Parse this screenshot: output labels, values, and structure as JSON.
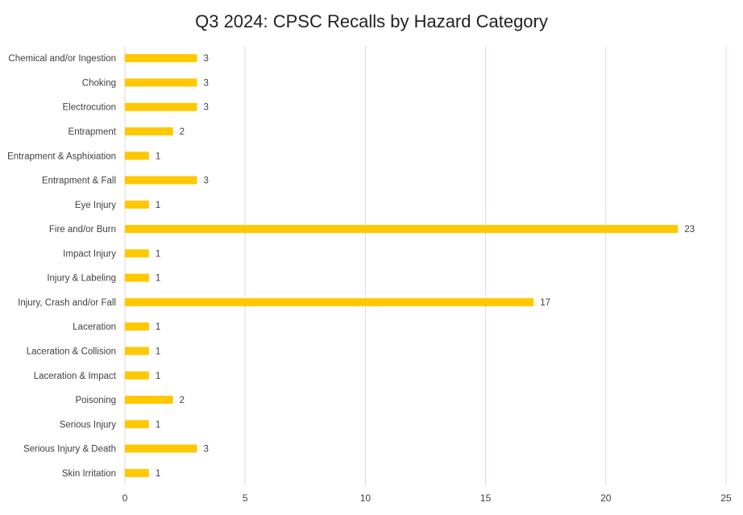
{
  "chart_data": {
    "type": "bar",
    "orientation": "horizontal",
    "title": "Q3 2024: CPSC Recalls by Hazard Category",
    "xlabel": "",
    "ylabel": "",
    "categories": [
      "Chemical and/or Ingestion",
      "Choking",
      "Electrocution",
      "Entrapment",
      "Entrapment & Asphixiation",
      "Entrapment & Fall",
      "Eye Injury",
      "Fire and/or Burn",
      "Impact Injury",
      "Injury & Labeling",
      "Injury, Crash and/or Fall",
      "Laceration",
      "Laceration & Collision",
      "Laceration & Impact",
      "Poisoning",
      "Serious Injury",
      "Serious Injury & Death",
      "Skin Irritation"
    ],
    "values": [
      3,
      3,
      3,
      2,
      1,
      3,
      1,
      23,
      1,
      1,
      17,
      1,
      1,
      1,
      2,
      1,
      3,
      1
    ],
    "xlim": [
      0,
      25
    ],
    "xticks": [
      0,
      5,
      10,
      15,
      20,
      25
    ],
    "grid": true,
    "legend": "none",
    "data_labels": true,
    "colors": {
      "bar": "#FFC800",
      "grid": "#E8D4DC",
      "text": "#404040"
    }
  }
}
